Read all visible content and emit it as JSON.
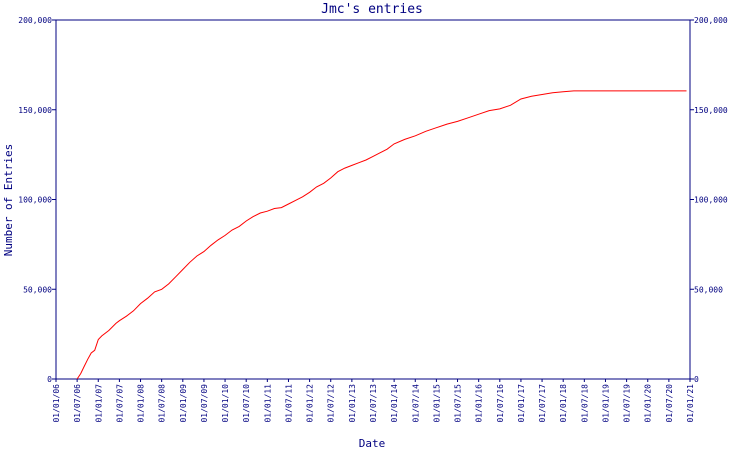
{
  "chart_data": {
    "type": "line",
    "title": "Jmc's entries",
    "xlabel": "Date",
    "ylabel": "Number of Entries",
    "ylim": [
      0,
      200000
    ],
    "grid": false,
    "legend": "none",
    "colors": {
      "axes": "#000080",
      "series": "#ff0000"
    },
    "y_ticks": [
      {
        "value": 0,
        "label": "0"
      },
      {
        "value": 50000,
        "label": "50,000"
      },
      {
        "value": 100000,
        "label": "100,000"
      },
      {
        "value": 150000,
        "label": "150,000"
      },
      {
        "value": 200000,
        "label": "200,000"
      }
    ],
    "x_ticks": [
      "01/01/06",
      "01/07/06",
      "01/01/07",
      "01/07/07",
      "01/01/08",
      "01/07/08",
      "01/01/09",
      "01/07/09",
      "01/01/10",
      "01/07/10",
      "01/01/11",
      "01/07/11",
      "01/01/12",
      "01/07/12",
      "01/01/13",
      "01/07/13",
      "01/01/14",
      "01/07/14",
      "01/01/15",
      "01/07/15",
      "01/01/16",
      "01/07/16",
      "01/01/17",
      "01/07/17",
      "01/01/18",
      "01/07/18",
      "01/01/19",
      "01/07/19",
      "01/01/20",
      "01/07/20",
      "01/01/21"
    ],
    "series": [
      {
        "x": [
          "2006-07",
          "2006-08",
          "2006-09",
          "2006-10",
          "2006-11",
          "2006-12",
          "2007-01",
          "2007-02",
          "2007-04",
          "2007-06",
          "2007-07",
          "2007-09",
          "2007-11",
          "2008-01",
          "2008-03",
          "2008-05",
          "2008-07",
          "2008-09",
          "2008-11",
          "2009-01",
          "2009-03",
          "2009-05",
          "2009-07",
          "2009-09",
          "2009-11",
          "2010-01",
          "2010-03",
          "2010-05",
          "2010-07",
          "2010-09",
          "2010-11",
          "2011-01",
          "2011-03",
          "2011-05",
          "2011-07",
          "2011-09",
          "2011-11",
          "2012-01",
          "2012-03",
          "2012-05",
          "2012-07",
          "2012-09",
          "2012-11",
          "2013-01",
          "2013-03",
          "2013-05",
          "2013-07",
          "2013-09",
          "2013-11",
          "2014-01",
          "2014-04",
          "2014-07",
          "2014-10",
          "2015-01",
          "2015-04",
          "2015-07",
          "2015-10",
          "2016-01",
          "2016-04",
          "2016-07",
          "2016-10",
          "2017-01",
          "2017-04",
          "2017-07",
          "2017-10",
          "2018-01",
          "2018-04",
          "2018-07",
          "2018-10",
          "2019-01",
          "2019-04",
          "2019-07",
          "2019-10",
          "2020-01",
          "2020-04",
          "2020-07",
          "2020-10",
          "2020-12"
        ],
        "y": [
          0,
          3000,
          7000,
          11000,
          14500,
          16000,
          22000,
          24000,
          27000,
          31000,
          32500,
          35000,
          38000,
          42000,
          45000,
          48500,
          50000,
          53000,
          57000,
          61000,
          65000,
          68500,
          71000,
          74500,
          77500,
          80000,
          83000,
          85000,
          88000,
          90500,
          92500,
          93500,
          95000,
          95500,
          97500,
          99500,
          101500,
          104000,
          107000,
          109000,
          112000,
          115500,
          117500,
          119000,
          120500,
          122000,
          124000,
          126000,
          128000,
          131000,
          133500,
          135500,
          138000,
          140000,
          142000,
          143500,
          145500,
          147500,
          149500,
          150500,
          152500,
          156000,
          157500,
          158500,
          159500,
          160000,
          160500,
          160500,
          160500,
          160500,
          160500,
          160500,
          160500,
          160500,
          160500,
          160500,
          160500,
          160500
        ]
      }
    ]
  }
}
